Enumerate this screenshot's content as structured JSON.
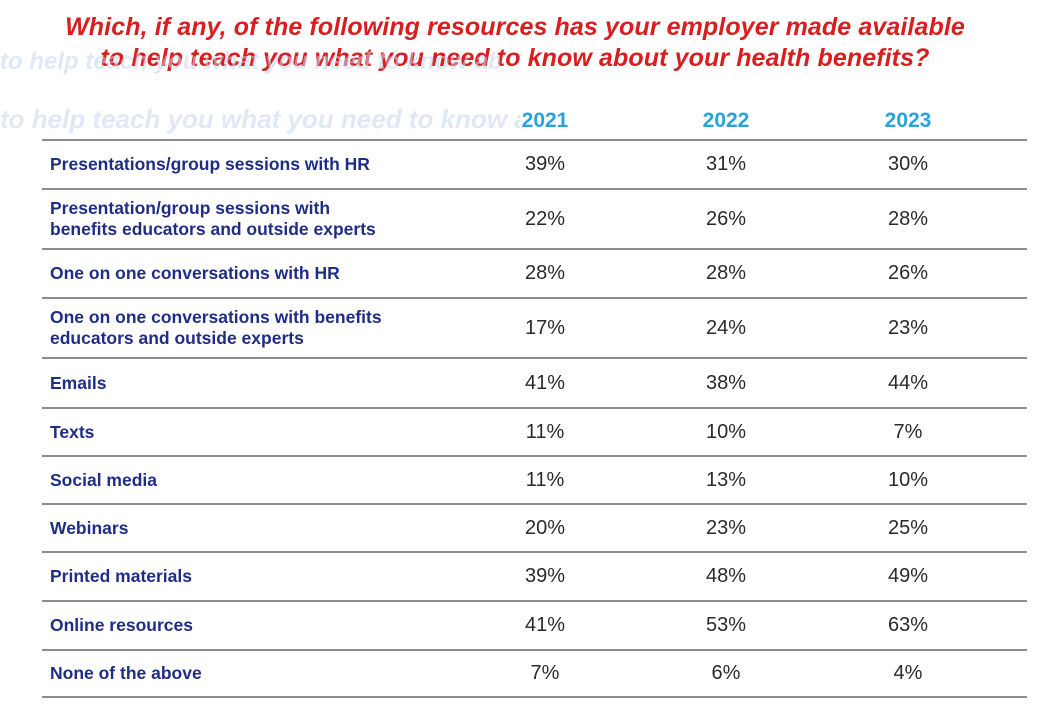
{
  "chart_data": {
    "type": "table",
    "title_lines": [
      "Which, if any, of the following resources has your employer made available",
      "to help teach you what you need to know about your health benefits?"
    ],
    "columns": [
      "2021",
      "2022",
      "2023"
    ],
    "rows": [
      {
        "label_lines": [
          "Presentations/group sessions with HR"
        ],
        "values": [
          "39%",
          "31%",
          "30%"
        ]
      },
      {
        "label_lines": [
          "Presentation/group sessions with",
          "benefits educators and outside experts"
        ],
        "values": [
          "22%",
          "26%",
          "28%"
        ]
      },
      {
        "label_lines": [
          "One on one conversations with HR"
        ],
        "values": [
          "28%",
          "28%",
          "26%"
        ]
      },
      {
        "label_lines": [
          "One on one conversations with benefits",
          "educators and outside experts"
        ],
        "values": [
          "17%",
          "24%",
          "23%"
        ]
      },
      {
        "label_lines": [
          "Emails"
        ],
        "values": [
          "41%",
          "38%",
          "44%"
        ]
      },
      {
        "label_lines": [
          "Texts"
        ],
        "values": [
          "11%",
          "10%",
          "7%"
        ]
      },
      {
        "label_lines": [
          "Social media"
        ],
        "values": [
          "11%",
          "13%",
          "10%"
        ]
      },
      {
        "label_lines": [
          "Webinars"
        ],
        "values": [
          "20%",
          "23%",
          "25%"
        ]
      },
      {
        "label_lines": [
          "Printed materials"
        ],
        "values": [
          "39%",
          "48%",
          "49%"
        ]
      },
      {
        "label_lines": [
          "Online resources"
        ],
        "values": [
          "41%",
          "53%",
          "63%"
        ]
      },
      {
        "label_lines": [
          "None of the above"
        ],
        "values": [
          "7%",
          "6%",
          "4%"
        ]
      }
    ]
  },
  "colors": {
    "title": "#d81e1e",
    "header": "#29a3dd",
    "label": "#1f2d86",
    "value": "#2a2a2a",
    "rule": "#8d8d8d"
  }
}
